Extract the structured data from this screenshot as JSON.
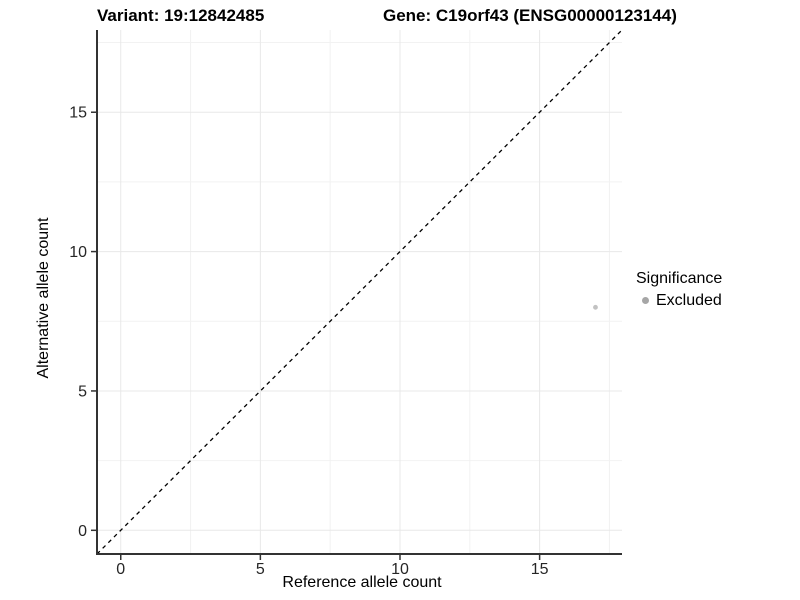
{
  "chart_data": {
    "type": "scatter",
    "title_left": "Variant: 19:12842485",
    "title_right": "Gene: C19orf43 (ENSG00000123144)",
    "xlabel": "Reference allele count",
    "ylabel": "Alternative allele count",
    "xlim": [
      -0.85,
      17.95
    ],
    "ylim": [
      -0.85,
      17.95
    ],
    "x_major_ticks": [
      0,
      5,
      10,
      15
    ],
    "y_major_ticks": [
      0,
      5,
      10,
      15
    ],
    "x_minor_ticks": [
      2.5,
      7.5,
      12.5,
      17.5
    ],
    "y_minor_ticks": [
      2.5,
      7.5,
      12.5,
      17.5
    ],
    "grid": true,
    "reference_line": {
      "type": "identity",
      "slope": 1,
      "intercept": 0,
      "style": "dashed",
      "color": "#000000"
    },
    "series": [
      {
        "name": "Excluded",
        "color": "#c2c2c2",
        "point_radius": 2.4,
        "points": [
          {
            "x": 17,
            "y": 8
          }
        ]
      }
    ],
    "legend": {
      "title": "Significance",
      "position": "right",
      "entries": [
        {
          "label": "Excluded",
          "color": "#a6a6a6"
        }
      ]
    },
    "style": {
      "axis_color": "#333333",
      "tick_label_color": "#262626",
      "grid_major_color": "#e8e8e8",
      "grid_minor_color": "#f2f2f2",
      "tick_label_font_size": 16
    }
  }
}
